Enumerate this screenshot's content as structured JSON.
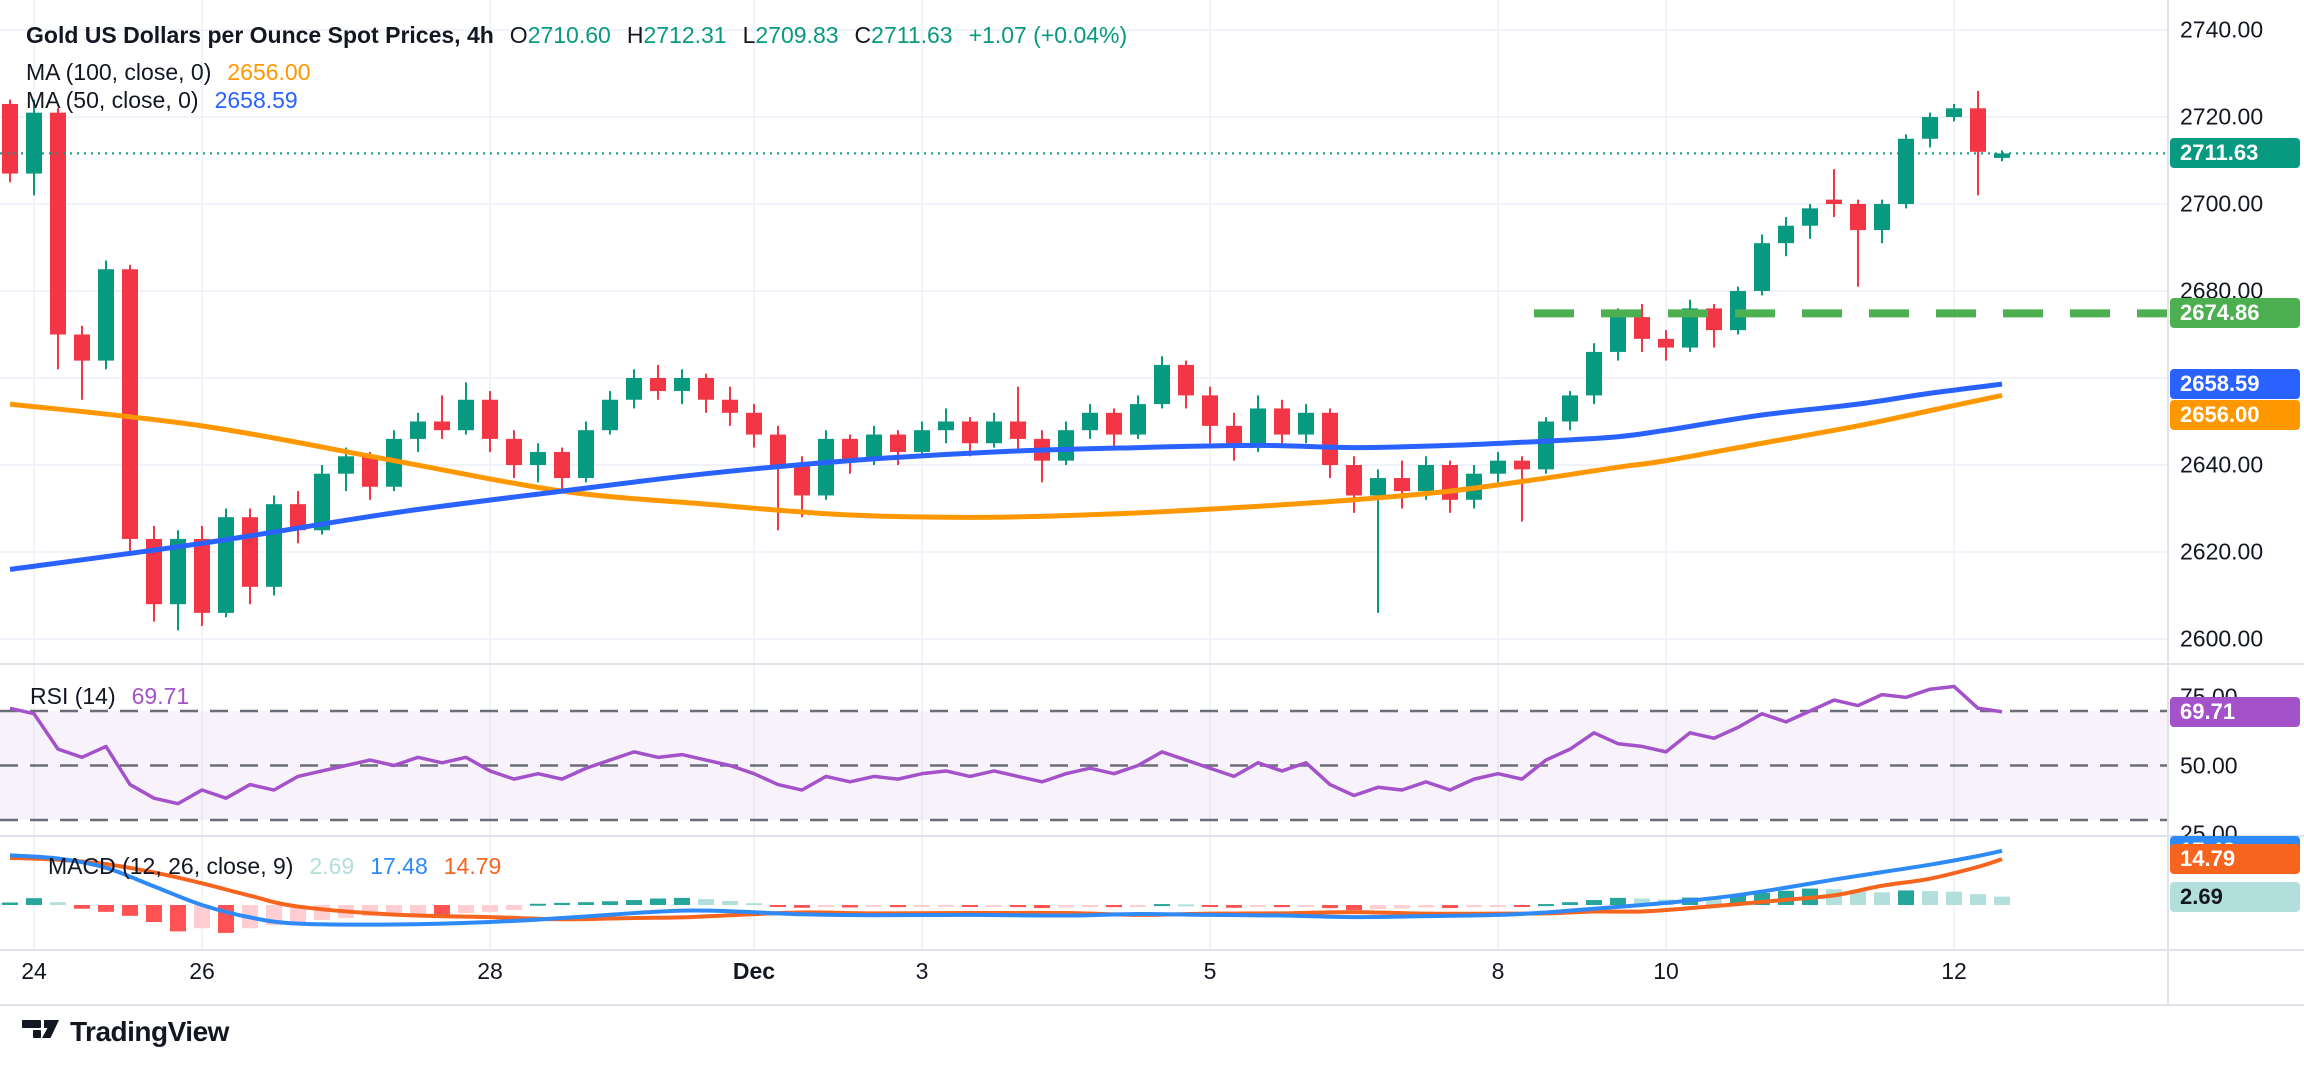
{
  "legend": {
    "title": "Gold US Dollars per Ounce Spot Prices, 4h",
    "ohlc": [
      {
        "label": "O",
        "value": "2710.60"
      },
      {
        "label": "H",
        "value": "2712.31"
      },
      {
        "label": "L",
        "value": "2709.83"
      },
      {
        "label": "C",
        "value": "2711.63"
      }
    ],
    "change": "+1.07 (+0.04%)",
    "ma100": {
      "label": "MA (100, close, 0)",
      "value": "2656.00"
    },
    "ma50": {
      "label": "MA (50, close, 0)",
      "value": "2658.59"
    }
  },
  "rsi_legend": {
    "label": "RSI (14)",
    "value": "69.71"
  },
  "macd_legend": {
    "label": "MACD (12, 26, close, 9)",
    "values": [
      "2.69",
      "17.48",
      "14.79"
    ]
  },
  "watermark": "TradingView",
  "colors": {
    "up": "#089981",
    "down": "#f23645",
    "grid": "#f0f3fa",
    "separator": "#e0e3eb",
    "text": "#131722",
    "ma50": "#2962ff",
    "ma100": "#ff9800",
    "support": "#4caf50",
    "rsi": "#a452c9",
    "rsi_band": "rgba(167,92,204,0.08)",
    "rsi_level": "#6a6e78",
    "macd": "#2e8af6",
    "signal": "#f7641e",
    "hist_up": "#26a69a",
    "hist_up_weak": "#b2dfdb",
    "hist_down": "#ff5252",
    "hist_down_weak": "#ffcdd2"
  },
  "price_axis": {
    "ticks": [
      {
        "label": "2740.00",
        "price": 2740
      },
      {
        "label": "2720.00",
        "price": 2720
      },
      {
        "label": "2700.00",
        "price": 2700
      },
      {
        "label": "2680.00",
        "price": 2680
      },
      {
        "label": "2640.00",
        "price": 2640
      },
      {
        "label": "2620.00",
        "price": 2620
      },
      {
        "label": "2600.00",
        "price": 2600
      }
    ],
    "badges": [
      {
        "label": "2711.63",
        "price": 2711.63,
        "bg": "#089981",
        "fg": "#ffffff"
      },
      {
        "label": "2674.86",
        "price": 2674.86,
        "bg": "#4caf50",
        "fg": "#ffffff"
      },
      {
        "label": "2658.59",
        "price": 2658.59,
        "bg": "#2962ff",
        "fg": "#ffffff"
      },
      {
        "label": "2656.00",
        "price": 2656.0,
        "bg": "#ff9800",
        "fg": "#ffffff"
      }
    ]
  },
  "rsi_axis": {
    "ticks": [
      {
        "label": "75.00",
        "value": 75
      },
      {
        "label": "50.00",
        "value": 50
      },
      {
        "label": "25.00",
        "value": 25
      }
    ],
    "badge": {
      "label": "69.71",
      "value": 69.71,
      "bg": "#a452c9",
      "fg": "#ffffff"
    }
  },
  "macd_axis": {
    "badges": [
      {
        "label": "17.48",
        "value": 17.48,
        "bg": "#2e8af6",
        "fg": "#ffffff"
      },
      {
        "label": "14.79",
        "value": 14.79,
        "bg": "#f7641e",
        "fg": "#ffffff"
      },
      {
        "label": "2.69",
        "value": 2.69,
        "bg": "#b2dfdb",
        "fg": "#131722"
      }
    ]
  },
  "chart_data": {
    "type": "candlestick",
    "title": "Gold US Dollars per Ounce Spot Prices",
    "interval": "4h",
    "ylim": [
      2596,
      2745
    ],
    "grid": true,
    "price_gridlines": [
      2740,
      2720,
      2700,
      2680,
      2660,
      2640,
      2620,
      2600
    ],
    "current_price": 2711.63,
    "support_level": {
      "price": 2674.86,
      "start_index": 63.5
    },
    "time_labels": [
      {
        "label": "24",
        "index": 1
      },
      {
        "label": "26",
        "index": 8
      },
      {
        "label": "28",
        "index": 20
      },
      {
        "label": "Dec",
        "index": 31,
        "bold": true
      },
      {
        "label": "3",
        "index": 38
      },
      {
        "label": "5",
        "index": 50
      },
      {
        "label": "8",
        "index": 62
      },
      {
        "label": "10",
        "index": 69
      },
      {
        "label": "12",
        "index": 81
      }
    ],
    "candles": [
      [
        2723,
        2724,
        2705,
        2707
      ],
      [
        2707,
        2724,
        2702,
        2721
      ],
      [
        2721,
        2722,
        2662,
        2670
      ],
      [
        2670,
        2672,
        2655,
        2664
      ],
      [
        2664,
        2687,
        2662,
        2685
      ],
      [
        2685,
        2686,
        2620,
        2623
      ],
      [
        2623,
        2626,
        2604,
        2608
      ],
      [
        2608,
        2625,
        2602,
        2623
      ],
      [
        2623,
        2626,
        2603,
        2606
      ],
      [
        2606,
        2630,
        2605,
        2628
      ],
      [
        2628,
        2630,
        2608,
        2612
      ],
      [
        2612,
        2633,
        2610,
        2631
      ],
      [
        2631,
        2634,
        2622,
        2625
      ],
      [
        2625,
        2640,
        2624,
        2638
      ],
      [
        2638,
        2644,
        2634,
        2642
      ],
      [
        2642,
        2643,
        2632,
        2635
      ],
      [
        2635,
        2648,
        2634,
        2646
      ],
      [
        2646,
        2652,
        2643,
        2650
      ],
      [
        2650,
        2656,
        2646,
        2648
      ],
      [
        2648,
        2659,
        2647,
        2655
      ],
      [
        2655,
        2657,
        2643,
        2646
      ],
      [
        2646,
        2648,
        2637,
        2640
      ],
      [
        2640,
        2645,
        2636,
        2643
      ],
      [
        2643,
        2644,
        2634,
        2637
      ],
      [
        2637,
        2650,
        2636,
        2648
      ],
      [
        2648,
        2657,
        2647,
        2655
      ],
      [
        2655,
        2662,
        2653,
        2660
      ],
      [
        2660,
        2663,
        2655,
        2657
      ],
      [
        2657,
        2662,
        2654,
        2660
      ],
      [
        2660,
        2661,
        2652,
        2655
      ],
      [
        2655,
        2658,
        2649,
        2652
      ],
      [
        2652,
        2654,
        2644,
        2647
      ],
      [
        2647,
        2649,
        2625,
        2640
      ],
      [
        2640,
        2642,
        2628,
        2633
      ],
      [
        2633,
        2648,
        2632,
        2646
      ],
      [
        2646,
        2647,
        2638,
        2641
      ],
      [
        2641,
        2649,
        2640,
        2647
      ],
      [
        2647,
        2648,
        2640,
        2643
      ],
      [
        2643,
        2650,
        2642,
        2648
      ],
      [
        2648,
        2653,
        2645,
        2650
      ],
      [
        2650,
        2651,
        2642,
        2645
      ],
      [
        2645,
        2652,
        2644,
        2650
      ],
      [
        2650,
        2658,
        2643,
        2646
      ],
      [
        2646,
        2648,
        2636,
        2641
      ],
      [
        2641,
        2650,
        2640,
        2648
      ],
      [
        2648,
        2654,
        2646,
        2652
      ],
      [
        2652,
        2653,
        2644,
        2647
      ],
      [
        2647,
        2656,
        2646,
        2654
      ],
      [
        2654,
        2665,
        2653,
        2663
      ],
      [
        2663,
        2664,
        2653,
        2656
      ],
      [
        2656,
        2658,
        2645,
        2649
      ],
      [
        2649,
        2652,
        2641,
        2644
      ],
      [
        2644,
        2656,
        2643,
        2653
      ],
      [
        2653,
        2655,
        2644,
        2647
      ],
      [
        2647,
        2654,
        2645,
        2652
      ],
      [
        2652,
        2653,
        2637,
        2640
      ],
      [
        2640,
        2642,
        2629,
        2633
      ],
      [
        2633,
        2639,
        2606,
        2637
      ],
      [
        2637,
        2641,
        2630,
        2634
      ],
      [
        2634,
        2642,
        2632,
        2640
      ],
      [
        2640,
        2641,
        2629,
        2632
      ],
      [
        2632,
        2640,
        2630,
        2638
      ],
      [
        2638,
        2643,
        2636,
        2641
      ],
      [
        2641,
        2642,
        2627,
        2639
      ],
      [
        2639,
        2651,
        2638,
        2650
      ],
      [
        2650,
        2657,
        2648,
        2656
      ],
      [
        2656,
        2668,
        2654,
        2666
      ],
      [
        2666,
        2676,
        2664,
        2674
      ],
      [
        2674,
        2677,
        2666,
        2669
      ],
      [
        2669,
        2671,
        2664,
        2667
      ],
      [
        2667,
        2678,
        2666,
        2676
      ],
      [
        2676,
        2677,
        2667,
        2671
      ],
      [
        2671,
        2681,
        2670,
        2680
      ],
      [
        2680,
        2693,
        2679,
        2691
      ],
      [
        2691,
        2697,
        2688,
        2695
      ],
      [
        2695,
        2700,
        2692,
        2699
      ],
      [
        2701,
        2708,
        2697,
        2700
      ],
      [
        2700,
        2701,
        2681,
        2694
      ],
      [
        2694,
        2701,
        2691,
        2700
      ],
      [
        2700,
        2716,
        2699,
        2715
      ],
      [
        2715,
        2721,
        2713,
        2720
      ],
      [
        2720,
        2723,
        2719,
        2722
      ],
      [
        2722,
        2726,
        2702,
        2712
      ],
      [
        2710.6,
        2712.31,
        2709.83,
        2711.63
      ]
    ],
    "ma50": {
      "period": 50,
      "last": 2658.59,
      "points": [
        [
          0,
          2616
        ],
        [
          8,
          2622
        ],
        [
          16,
          2629
        ],
        [
          23,
          2634
        ],
        [
          29,
          2638
        ],
        [
          35,
          2641
        ],
        [
          41,
          2643
        ],
        [
          47,
          2644
        ],
        [
          52,
          2644.5
        ],
        [
          56,
          2644
        ],
        [
          60,
          2644.5
        ],
        [
          64,
          2645.5
        ],
        [
          67,
          2646.5
        ],
        [
          69,
          2648
        ],
        [
          73,
          2651.5
        ],
        [
          77,
          2654
        ],
        [
          80,
          2656.5
        ],
        [
          83,
          2658.59
        ]
      ]
    },
    "ma100": {
      "period": 100,
      "last": 2656.0,
      "points": [
        [
          0,
          2654
        ],
        [
          8,
          2649
        ],
        [
          16,
          2641
        ],
        [
          23,
          2634
        ],
        [
          29,
          2631
        ],
        [
          35,
          2628.5
        ],
        [
          41,
          2628
        ],
        [
          47,
          2629
        ],
        [
          52,
          2630.5
        ],
        [
          56,
          2632
        ],
        [
          60,
          2634
        ],
        [
          64,
          2637
        ],
        [
          67,
          2639.5
        ],
        [
          69,
          2641
        ],
        [
          73,
          2645
        ],
        [
          77,
          2649
        ],
        [
          80,
          2652.5
        ],
        [
          83,
          2656.0
        ]
      ]
    },
    "rsi": {
      "period": 14,
      "last": 69.71,
      "levels": [
        70,
        50,
        30
      ],
      "values": [
        71,
        69,
        56,
        53,
        57,
        43,
        38,
        36,
        41,
        38,
        43,
        41,
        46,
        48,
        50,
        52,
        50,
        53,
        51,
        53,
        48,
        45,
        47,
        45,
        49,
        52,
        55,
        53,
        54,
        52,
        50,
        47,
        43,
        41,
        46,
        44,
        46,
        45,
        47,
        48,
        46,
        48,
        46,
        44,
        47,
        49,
        47,
        50,
        55,
        52,
        49,
        46,
        51,
        48,
        51,
        43,
        39,
        42,
        41,
        44,
        41,
        45,
        47,
        45,
        52,
        56,
        62,
        58,
        57,
        55,
        62,
        60,
        64,
        69,
        66,
        70,
        74,
        72,
        76,
        75,
        78,
        79,
        71,
        69.71
      ]
    },
    "macd": {
      "params": "12, 26, close, 9",
      "macd_value": 17.48,
      "signal_value": 14.79,
      "hist_value": 2.69,
      "hist": [
        0.8,
        2.2,
        0.9,
        -1.2,
        -2.2,
        -3.5,
        -5.5,
        -8.5,
        -7.5,
        -9.0,
        -7.5,
        -6.5,
        -5.5,
        -4.8,
        -4.2,
        -3.6,
        -3.2,
        -2.8,
        -3.4,
        -2.6,
        -2.2,
        -1.6,
        0.4,
        0.7,
        0.9,
        1.2,
        1.6,
        2.1,
        2.3,
        1.9,
        1.3,
        0.6,
        -0.5,
        -0.9,
        -0.6,
        -0.8,
        -0.5,
        -0.7,
        -0.5,
        -0.4,
        -0.6,
        -0.4,
        -0.7,
        -1.0,
        -0.8,
        -0.5,
        -0.7,
        -0.4,
        0.3,
        0.2,
        -0.4,
        -0.9,
        -0.5,
        -0.7,
        -0.4,
        -1.0,
        -1.6,
        -1.3,
        -1.1,
        -0.8,
        -1.0,
        -0.7,
        -0.4,
        -0.6,
        0.3,
        0.9,
        1.6,
        2.3,
        2.1,
        1.8,
        2.4,
        2.2,
        2.9,
        3.9,
        4.6,
        5.3,
        5.1,
        4.4,
        4.1,
        4.7,
        4.5,
        4.3,
        3.5,
        2.69
      ],
      "macd_points": [
        [
          0,
          16
        ],
        [
          2,
          15
        ],
        [
          4,
          12
        ],
        [
          6,
          6
        ],
        [
          8,
          0
        ],
        [
          10,
          -4
        ],
        [
          12,
          -6
        ],
        [
          16,
          -6.3
        ],
        [
          20,
          -5.5
        ],
        [
          23,
          -4.2
        ],
        [
          26,
          -2.6
        ],
        [
          28,
          -1.8
        ],
        [
          30,
          -2
        ],
        [
          33,
          -3
        ],
        [
          36,
          -3.3
        ],
        [
          40,
          -3.2
        ],
        [
          44,
          -3.4
        ],
        [
          47,
          -2.9
        ],
        [
          50,
          -3.2
        ],
        [
          53,
          -3.4
        ],
        [
          56,
          -3.9
        ],
        [
          59,
          -3.6
        ],
        [
          62,
          -3.2
        ],
        [
          64,
          -2.4
        ],
        [
          66,
          -1.2
        ],
        [
          68,
          0
        ],
        [
          70,
          1.4
        ],
        [
          72,
          3.2
        ],
        [
          74,
          5.6
        ],
        [
          76,
          8.2
        ],
        [
          78,
          10.6
        ],
        [
          80,
          13
        ],
        [
          82,
          15.8
        ],
        [
          83,
          17.48
        ]
      ],
      "signal_points": [
        [
          0,
          15.2
        ],
        [
          2,
          14.6
        ],
        [
          4,
          13.2
        ],
        [
          6,
          10.5
        ],
        [
          8,
          7
        ],
        [
          10,
          3
        ],
        [
          12,
          -0.5
        ],
        [
          16,
          -3.1
        ],
        [
          20,
          -3.9
        ],
        [
          23,
          -4.6
        ],
        [
          26,
          -4.2
        ],
        [
          28,
          -4
        ],
        [
          30,
          -3.3
        ],
        [
          33,
          -2.4
        ],
        [
          36,
          -2.7
        ],
        [
          40,
          -2.6
        ],
        [
          44,
          -2.6
        ],
        [
          47,
          -3.2
        ],
        [
          50,
          -2.8
        ],
        [
          53,
          -2.7
        ],
        [
          56,
          -2.3
        ],
        [
          59,
          -2.8
        ],
        [
          62,
          -2.8
        ],
        [
          64,
          -2.7
        ],
        [
          66,
          -2.1
        ],
        [
          68,
          -2.1
        ],
        [
          70,
          -1
        ],
        [
          72,
          0.3
        ],
        [
          74,
          1.7
        ],
        [
          76,
          3.1
        ],
        [
          78,
          6.2
        ],
        [
          80,
          8.5
        ],
        [
          82,
          12.3
        ],
        [
          83,
          14.79
        ]
      ]
    }
  }
}
